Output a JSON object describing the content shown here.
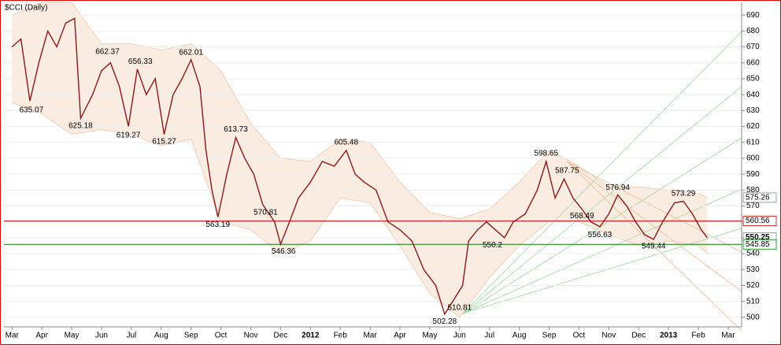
{
  "chart_data": {
    "type": "line",
    "title": "$CCI (Daily)",
    "xlim": [
      -0.27,
      24.45
    ],
    "xticks": [
      {
        "value": 0,
        "label": "Mar"
      },
      {
        "value": 1,
        "label": "Apr"
      },
      {
        "value": 2,
        "label": "May"
      },
      {
        "value": 3,
        "label": "Jun"
      },
      {
        "value": 4,
        "label": "Jul"
      },
      {
        "value": 5,
        "label": "Aug"
      },
      {
        "value": 6,
        "label": "Sep"
      },
      {
        "value": 7,
        "label": "Oct"
      },
      {
        "value": 8,
        "label": "Nov"
      },
      {
        "value": 9,
        "label": "Dec"
      },
      {
        "value": 10,
        "label": "2012"
      },
      {
        "value": 11,
        "label": "Feb"
      },
      {
        "value": 12,
        "label": "Mar"
      },
      {
        "value": 13,
        "label": "Apr"
      },
      {
        "value": 14,
        "label": "May"
      },
      {
        "value": 15,
        "label": "Jun"
      },
      {
        "value": 16,
        "label": "Jul"
      },
      {
        "value": 17,
        "label": "Aug"
      },
      {
        "value": 18,
        "label": "Sep"
      },
      {
        "value": 19,
        "label": "Oct"
      },
      {
        "value": 20,
        "label": "Nov"
      },
      {
        "value": 21,
        "label": "Dec"
      },
      {
        "value": 22,
        "label": "2013"
      },
      {
        "value": 23,
        "label": "Feb"
      },
      {
        "value": 24,
        "label": "Mar"
      }
    ],
    "ylim": [
      494,
      698
    ],
    "yticks": [
      500,
      510,
      520,
      530,
      540,
      550,
      560,
      570,
      580,
      590,
      600,
      610,
      620,
      630,
      640,
      650,
      660,
      670,
      680,
      690
    ],
    "grid": true,
    "x": [
      0,
      0.3,
      0.6,
      0.9,
      1.2,
      1.5,
      1.8,
      2.1,
      2.3,
      2.7,
      3.0,
      3.3,
      3.6,
      3.9,
      4.2,
      4.5,
      4.8,
      5.1,
      5.4,
      5.7,
      6.0,
      6.3,
      6.5,
      6.7,
      6.9,
      7.2,
      7.5,
      7.8,
      8.1,
      8.4,
      8.8,
      9.0,
      9.3,
      9.6,
      10.0,
      10.4,
      10.8,
      11.2,
      11.5,
      11.8,
      12.2,
      12.6,
      13.0,
      13.4,
      13.8,
      14.2,
      14.5,
      14.8,
      15.1,
      15.3,
      15.6,
      15.9,
      16.2,
      16.5,
      16.8,
      17.2,
      17.6,
      17.9,
      18.2,
      18.5,
      18.8,
      19.1,
      19.4,
      19.7,
      20.0,
      20.3,
      20.6,
      20.9,
      21.2,
      21.5,
      21.8,
      22.2,
      22.5,
      22.8,
      23.1,
      23.3
    ],
    "series": [
      {
        "name": "CCI",
        "color": "#8b1a1a",
        "values": [
          670,
          675,
          636,
          660,
          680,
          670,
          685,
          688,
          625,
          640,
          655,
          660,
          645,
          620,
          656,
          640,
          650,
          615,
          640,
          650,
          662,
          645,
          605,
          580,
          563,
          590,
          613,
          600,
          590,
          571,
          560,
          546,
          560,
          575,
          585,
          598,
          595,
          605,
          590,
          585,
          580,
          560,
          555,
          548,
          530,
          520,
          502,
          511,
          520,
          548,
          555,
          560,
          555,
          550,
          560,
          565,
          580,
          598,
          575,
          587,
          575,
          568,
          560,
          557,
          565,
          577,
          570,
          560,
          552,
          549,
          560,
          572,
          573,
          565,
          555,
          550
        ]
      }
    ],
    "band": {
      "color": "#f6dcc6",
      "x": [
        0,
        1,
        2,
        3,
        4,
        5,
        6,
        7,
        8,
        9,
        10,
        11,
        12,
        13,
        14,
        15,
        16,
        17,
        18,
        19,
        20,
        21,
        22,
        23,
        23.3
      ],
      "upper": [
        690,
        698,
        698,
        672,
        672,
        668,
        672,
        655,
        622,
        600,
        598,
        612,
        610,
        585,
        566,
        562,
        568,
        585,
        605,
        595,
        582,
        582,
        580,
        578,
        575.26
      ],
      "lower": [
        635,
        628,
        615,
        618,
        615,
        608,
        612,
        560,
        555,
        540,
        548,
        575,
        572,
        545,
        515,
        500,
        525,
        545,
        560,
        560,
        552,
        545,
        548,
        545,
        540
      ]
    },
    "annotations": [
      {
        "x": 0.65,
        "value": 635.07,
        "side": "below"
      },
      {
        "x": 2.3,
        "value": 625.18,
        "side": "below"
      },
      {
        "x": 3.2,
        "value": 662.37,
        "side": "above"
      },
      {
        "x": 3.9,
        "value": 619.27,
        "side": "below"
      },
      {
        "x": 4.3,
        "value": 656.33,
        "side": "above"
      },
      {
        "x": 5.1,
        "value": 615.27,
        "side": "below"
      },
      {
        "x": 6.0,
        "value": 662.01,
        "side": "above"
      },
      {
        "x": 6.9,
        "value": 563.19,
        "side": "below"
      },
      {
        "x": 7.5,
        "value": 613.73,
        "side": "above"
      },
      {
        "x": 8.5,
        "value": 570.81,
        "side": "below"
      },
      {
        "x": 9.1,
        "value": 546.36,
        "side": "below"
      },
      {
        "x": 11.2,
        "value": 605.48,
        "side": "above"
      },
      {
        "x": 14.5,
        "value": 502.28,
        "side": "below"
      },
      {
        "x": 15.0,
        "value": 510.81,
        "side": "below"
      },
      {
        "x": 16.1,
        "value": 550.2,
        "side": "below"
      },
      {
        "x": 17.9,
        "value": 598.65,
        "side": "above"
      },
      {
        "x": 18.6,
        "value": 587.75,
        "side": "above"
      },
      {
        "x": 19.1,
        "value": 568.49,
        "side": "below"
      },
      {
        "x": 19.7,
        "value": 556.63,
        "side": "below"
      },
      {
        "x": 20.3,
        "value": 576.94,
        "side": "above"
      },
      {
        "x": 21.5,
        "value": 549.44,
        "side": "below"
      },
      {
        "x": 22.5,
        "value": 573.29,
        "side": "above"
      }
    ],
    "markers": [
      {
        "value": 575.26
      },
      {
        "value": 560.56,
        "line_color": "#cc0000"
      },
      {
        "value": 550.25,
        "bold": true
      },
      {
        "value": 545.85,
        "line_color": "#008000"
      }
    ]
  }
}
